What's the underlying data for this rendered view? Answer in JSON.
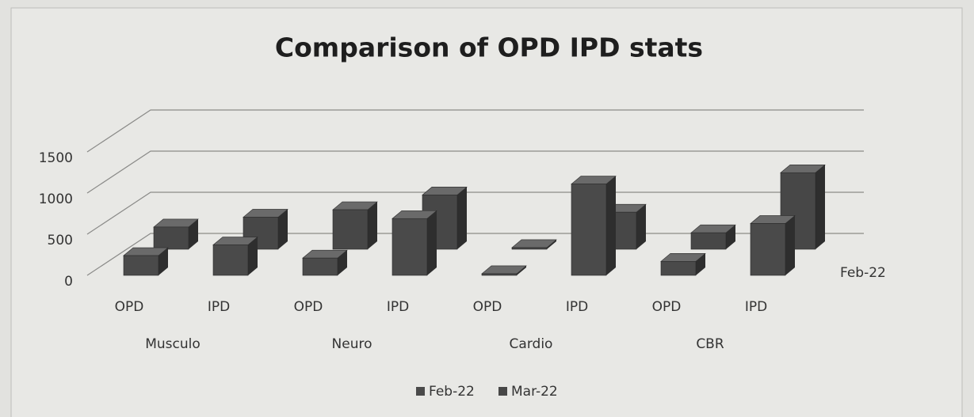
{
  "chart_data": {
    "type": "bar3d",
    "title": "Comparison of OPD IPD stats",
    "categories": [
      "OPD",
      "IPD",
      "OPD",
      "IPD",
      "OPD",
      "IPD",
      "OPD",
      "IPD"
    ],
    "groups": [
      "Musculo",
      "Neuro",
      "Cardio",
      "CBR"
    ],
    "series": [
      {
        "name": "Feb-22",
        "color": "#4a4a4a",
        "values": [
          240,
          370,
          210,
          690,
          20,
          1110,
          170,
          630
        ]
      },
      {
        "name": "Mar-22",
        "color": "#474747",
        "values": [
          270,
          390,
          480,
          660,
          20,
          450,
          200,
          930
        ]
      }
    ],
    "depth_labels": [
      "Feb-22"
    ],
    "ylim": [
      0,
      1500
    ],
    "yticks": [
      0,
      500,
      1000,
      1500
    ],
    "grid": true,
    "legend": "bottom"
  }
}
